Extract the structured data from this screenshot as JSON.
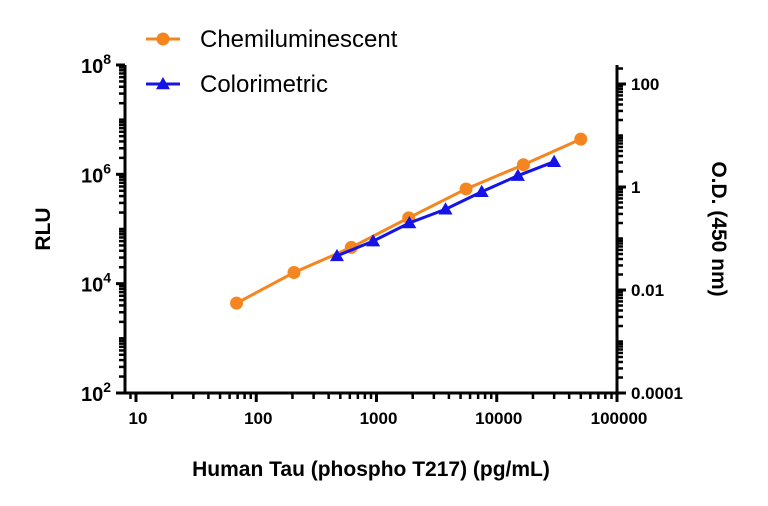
{
  "chart_data": {
    "type": "line",
    "xlabel": "Human Tau (phospho T217) (pg/mL)",
    "ylabel": "RLU",
    "y2label": "O.D. (450 nm)",
    "x_scale": "log",
    "y_scale": "log",
    "y2_scale": "log",
    "xlim": [
      8.1,
      100000
    ],
    "ylim": [
      100,
      100000000
    ],
    "y2lim": [
      0.0001,
      234
    ],
    "x_ticks": [
      10,
      100,
      1000,
      10000,
      100000
    ],
    "x_tick_labels": [
      "10",
      "100",
      "1000",
      "10000",
      "100000"
    ],
    "y_ticks": [
      100,
      10000,
      1000000,
      100000000
    ],
    "y_tick_labels": [
      {
        "base": "10",
        "exp": "2"
      },
      {
        "base": "10",
        "exp": "4"
      },
      {
        "base": "10",
        "exp": "6"
      },
      {
        "base": "10",
        "exp": "8"
      }
    ],
    "y2_ticks": [
      0.0001,
      0.01,
      1,
      100
    ],
    "y2_tick_labels": [
      "0.0001",
      "0.01",
      "1",
      "100"
    ],
    "grid": false,
    "legend_position": "top-left",
    "series": [
      {
        "name": "Chemiluminescent",
        "axis": "left",
        "color": "#F5861F",
        "marker": "circle",
        "x": [
          68.6,
          206,
          617,
          1852,
          5556,
          16667,
          50000
        ],
        "y": [
          4400,
          16000,
          46000,
          160000,
          540000,
          1500000,
          4400000
        ]
      },
      {
        "name": "Colorimetric",
        "axis": "right",
        "color": "#1414E6",
        "marker": "triangle",
        "x": [
          469,
          938,
          1875,
          3750,
          7500,
          15000,
          30000
        ],
        "y": [
          0.046,
          0.089,
          0.2,
          0.37,
          0.81,
          1.66,
          3.1
        ]
      }
    ]
  }
}
